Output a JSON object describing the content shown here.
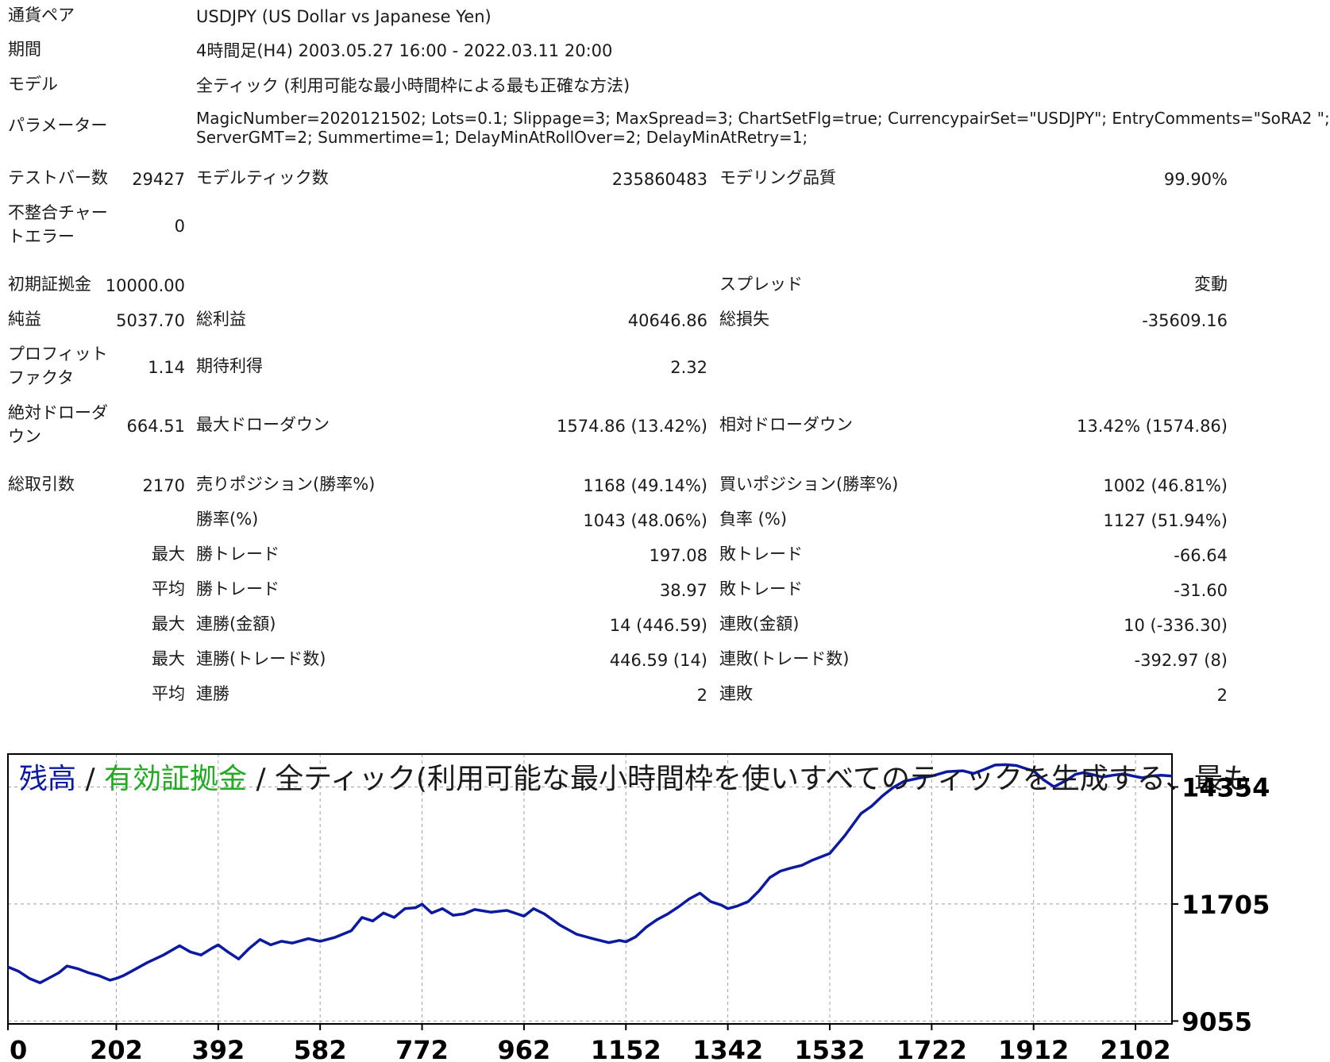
{
  "header": {
    "pair_label": "通貨ペア",
    "pair_value": "USDJPY (US Dollar vs Japanese Yen)",
    "period_label": "期間",
    "period_value": "4時間足(H4) 2003.05.27 16:00 - 2022.03.11 20:00",
    "model_label": "モデル",
    "model_value": "全ティック (利用可能な最小時間枠による最も正確な方法)",
    "params_label": "パラメーター",
    "params_line1": "MagicNumber=2020121502; Lots=0.1; Slippage=3; MaxSpread=3; ChartSetFlg=true; CurrencypairSet=\"USDJPY\"; EntryComments=\"SoRA2 \";",
    "params_line2": "ServerGMT=2; Summertime=1; DelayMinAtRollOver=2; DelayMinAtRetry=1;"
  },
  "stats": {
    "bars_label": "テストバー数",
    "bars_value": "29427",
    "ticks_label": "モデルティック数",
    "ticks_value": "235860483",
    "quality_label": "モデリング品質",
    "quality_value": "99.90%",
    "mismatch_label_1": "不整合チャー",
    "mismatch_label_2": "トエラー",
    "mismatch_value": "0",
    "deposit_label": "初期証拠金",
    "deposit_value": "10000.00",
    "spread_label": "スプレッド",
    "spread_value": "変動",
    "net_label": "純益",
    "net_value": "5037.70",
    "gross_profit_label": "総利益",
    "gross_profit_value": "40646.86",
    "gross_loss_label": "総損失",
    "gross_loss_value": "-35609.16",
    "pf_label_1": "プロフィット",
    "pf_label_2": "ファクタ",
    "pf_value": "1.14",
    "expected_label": "期待利得",
    "expected_value": "2.32",
    "abs_dd_label_1": "絶対ドローダ",
    "abs_dd_label_2": "ウン",
    "abs_dd_value": "664.51",
    "max_dd_label": "最大ドローダウン",
    "max_dd_value": "1574.86 (13.42%)",
    "rel_dd_label": "相対ドローダウン",
    "rel_dd_value": "13.42% (1574.86)",
    "trades_label": "総取引数",
    "trades_value": "2170",
    "short_label": "売りポジション(勝率%)",
    "short_value": "1168 (49.14%)",
    "long_label": "買いポジション(勝率%)",
    "long_value": "1002 (46.81%)",
    "win_label": "勝率(%)",
    "win_value": "1043 (48.06%)",
    "loss_label": "負率 (%)",
    "loss_value": "1127 (51.94%)",
    "r1_prefix": "最大",
    "r1_a_label": "勝トレード",
    "r1_a_value": "197.08",
    "r1_b_label": "敗トレード",
    "r1_b_value": "-66.64",
    "r2_prefix": "平均",
    "r2_a_label": "勝トレード",
    "r2_a_value": "38.97",
    "r2_b_label": "敗トレード",
    "r2_b_value": "-31.60",
    "r3_prefix": "最大",
    "r3_a_label": "連勝(金額)",
    "r3_a_value": "14 (446.59)",
    "r3_b_label": "連敗(金額)",
    "r3_b_value": "10 (-336.30)",
    "r4_prefix": "最大",
    "r4_a_label": "連勝(トレード数)",
    "r4_a_value": "446.59 (14)",
    "r4_b_label": "連敗(トレード数)",
    "r4_b_value": "-392.97 (8)",
    "r5_prefix": "平均",
    "r5_a_label": "連勝",
    "r5_a_value": "2",
    "r5_b_label": "連敗",
    "r5_b_value": "2"
  },
  "colors": {
    "balance": "#0b1aa0",
    "equity": "#22aa22",
    "text": "#1a1a1a",
    "grid": "#a0a0a0"
  },
  "chart_data": {
    "type": "line",
    "title_parts": [
      "残高",
      " / ",
      "有効証拠金",
      " / ",
      "全ティック(利用可能な最小時間枠を使いすべてのティックを生成する、最も"
    ],
    "x_ticks": [
      0,
      202,
      392,
      582,
      772,
      962,
      1152,
      1342,
      1532,
      1722,
      1912,
      2102
    ],
    "y_ticks": [
      9055,
      11705,
      14354
    ],
    "xlim": [
      0,
      2170
    ],
    "ylim": [
      8990,
      15100
    ],
    "grid": true,
    "series": [
      {
        "name": "残高",
        "x": [
          0,
          20,
          40,
          60,
          80,
          95,
          110,
          130,
          150,
          170,
          190,
          202,
          215,
          230,
          260,
          290,
          320,
          340,
          360,
          380,
          392,
          410,
          430,
          450,
          470,
          490,
          510,
          530,
          560,
          582,
          610,
          640,
          660,
          680,
          700,
          720,
          740,
          760,
          772,
          790,
          810,
          830,
          850,
          870,
          900,
          930,
          962,
          980,
          1000,
          1030,
          1060,
          1090,
          1120,
          1140,
          1152,
          1170,
          1190,
          1210,
          1230,
          1250,
          1270,
          1290,
          1310,
          1330,
          1342,
          1360,
          1380,
          1400,
          1420,
          1440,
          1460,
          1480,
          1500,
          1532,
          1560,
          1590,
          1610,
          1630,
          1650,
          1670,
          1700,
          1722,
          1750,
          1780,
          1800,
          1820,
          1840,
          1860,
          1880,
          1900,
          1912,
          1930,
          1950,
          1960,
          1975,
          1990,
          2005,
          2020,
          2040,
          2060,
          2080,
          2102,
          2115,
          2130,
          2150,
          2170
        ],
        "y": [
          10280,
          10180,
          10020,
          9920,
          10050,
          10150,
          10300,
          10240,
          10150,
          10080,
          9980,
          10020,
          10080,
          10180,
          10380,
          10550,
          10760,
          10620,
          10550,
          10700,
          10780,
          10620,
          10460,
          10700,
          10900,
          10780,
          10860,
          10820,
          10920,
          10860,
          10950,
          11100,
          11400,
          11320,
          11500,
          11400,
          11600,
          11620,
          11700,
          11500,
          11600,
          11450,
          11480,
          11580,
          11520,
          11560,
          11430,
          11600,
          11480,
          11220,
          11020,
          10920,
          10830,
          10880,
          10850,
          10960,
          11180,
          11350,
          11480,
          11640,
          11820,
          11950,
          11760,
          11680,
          11600,
          11660,
          11760,
          12000,
          12300,
          12450,
          12520,
          12580,
          12700,
          12850,
          13250,
          13750,
          13920,
          14150,
          14340,
          14480,
          14560,
          14600,
          14700,
          14720,
          14660,
          14750,
          14850,
          14860,
          14840,
          14760,
          14720,
          14520,
          14360,
          14420,
          14520,
          14640,
          14680,
          14640,
          14580,
          14620,
          14650,
          14590,
          14560,
          14600,
          14620,
          14600
        ]
      }
    ]
  }
}
